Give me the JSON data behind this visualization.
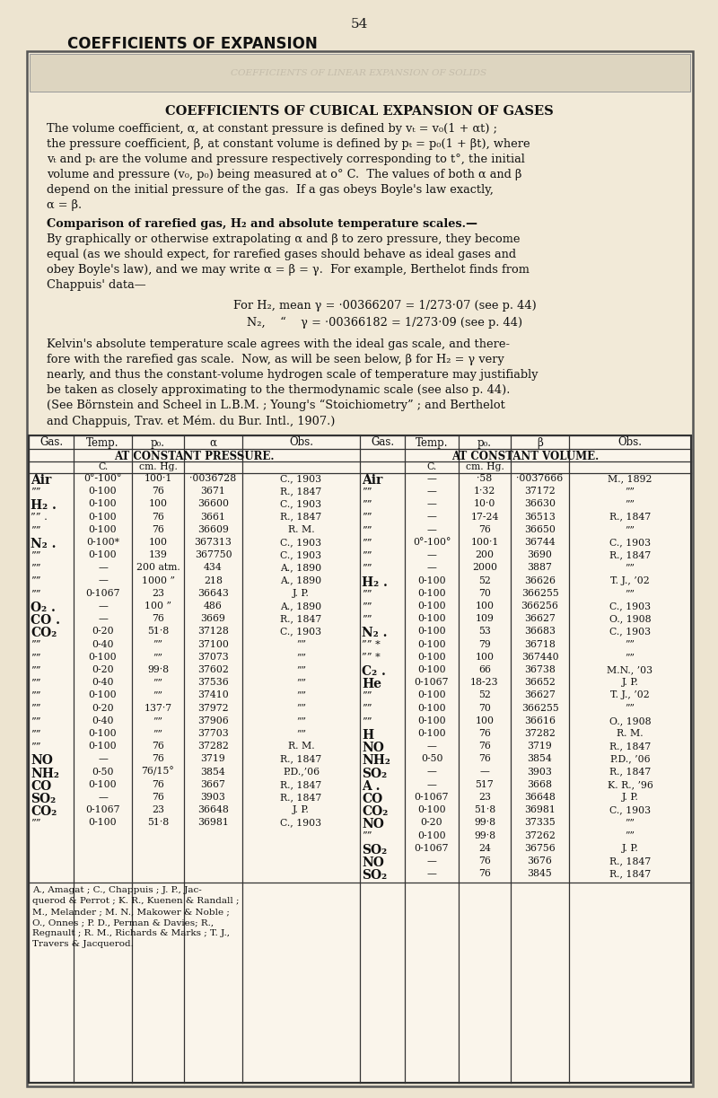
{
  "page_num": "54",
  "page_title": "COEFFICIENTS OF EXPANSION",
  "bg_color": "#ede4d0",
  "box_bg": "#f2ead8",
  "inner_box_bg": "#ddd5c0",
  "title_inner": "COEFFICIENTS OF CUBICAL EXPANSION OF GASES",
  "para1_lines": [
    "The volume coefficient, α, at constant pressure is defined by vₜ = v₀(1 + αt) ;",
    "the pressure coefficient, β, at constant volume is defined by pₜ = p₀(1 + βt), where",
    "vₜ and pₜ are the volume and pressure respectively corresponding to t°, the initial",
    "volume and pressure (v₀, p₀) being measured at o° C.  The values of both α and β",
    "depend on the initial pressure of the gas.  If a gas obeys Boyle's law exactly,",
    "α = β."
  ],
  "bold_heading": "Comparison of rarefied gas, H₂ and absolute temperature scales.—",
  "para2_lines": [
    "By graphically or otherwise extrapolating α and β to zero pressure, they become",
    "equal (as we should expect, for rarefied gases should behave as ideal gases and",
    "obey Boyle's law), and we may write α = β = γ.  For example, Berthelot finds from",
    "Chappuis' data—"
  ],
  "formula1": "For H₂, mean γ = ·00366207 = 1/273·07 (see p. 44)",
  "formula2": "N₂,    “    γ = ·00366182 = 1/273·09 (see p. 44)",
  "para3_lines": [
    "Kelvin's absolute temperature scale agrees with the ideal gas scale, and there-",
    "fore with the rarefied gas scale.  Now, as will be seen below, β for H₂ = γ very",
    "nearly, and thus the constant-volume hydrogen scale of temperature may justifiably",
    "be taken as closely approximating to the thermodynamic scale (see also p. 44).",
    "(See Börnstein and Scheel in L.B.M. ; Young's “Stoichiometry” ; and Berthelot",
    "and Chappuis, Trav. et Mém. du Bur. Intl., 1907.)"
  ],
  "table_header_left": [
    "Gas.",
    "Temp.",
    "p₀.",
    "α",
    "Obs."
  ],
  "table_header_right": [
    "Gas.",
    "Temp.",
    "p₀.",
    "β",
    "Obs."
  ],
  "col_header_left": "AT CONSTANT PRESSURE.",
  "col_header_right": "AT CONSTANT VOLUME.",
  "left_data": [
    [
      "Air",
      "0°-100°",
      "100·1",
      "·0036728",
      "C., 1903"
    ],
    [
      "””",
      "0-100",
      "76",
      "3671",
      "R., 1847"
    ],
    [
      "H₂ .",
      "0-100",
      "100",
      "36600",
      "C., 1903"
    ],
    [
      "”” .",
      "0-100",
      "76",
      "3661",
      "R., 1847"
    ],
    [
      "””",
      "0-100",
      "76",
      "36609",
      "R. M."
    ],
    [
      "N₂ .",
      "0-100*",
      "100",
      "367313",
      "C., 1903"
    ],
    [
      "””",
      "0-100",
      "139",
      "367750",
      "C., 1903"
    ],
    [
      "””",
      "—",
      "200 atm.",
      "434",
      "A., 1890"
    ],
    [
      "””",
      "—",
      "1000 ”",
      "218",
      "A., 1890"
    ],
    [
      "””",
      "0-1067",
      "23",
      "36643",
      "J. P."
    ],
    [
      "O₂ .",
      "—",
      "100 ”",
      "486",
      "A., 1890"
    ],
    [
      "CO .",
      "—",
      "76",
      "3669",
      "R., 1847"
    ],
    [
      "CO₂",
      "0-20",
      "51·8",
      "37128",
      "C., 1903"
    ],
    [
      "””",
      "0-40",
      "””",
      "37100",
      "””"
    ],
    [
      "””",
      "0-100",
      "””",
      "37073",
      "””"
    ],
    [
      "””",
      "0-20",
      "99·8",
      "37602",
      "””"
    ],
    [
      "””",
      "0-40",
      "””",
      "37536",
      "””"
    ],
    [
      "””",
      "0-100",
      "””",
      "37410",
      "””"
    ],
    [
      "””",
      "0-20",
      "137·7",
      "37972",
      "””"
    ],
    [
      "””",
      "0-40",
      "””",
      "37906",
      "””"
    ],
    [
      "””",
      "0-100",
      "””",
      "37703",
      "””"
    ],
    [
      "””",
      "0-100",
      "76",
      "37282",
      "R. M."
    ],
    [
      "NO",
      "—",
      "76",
      "3719",
      "R., 1847"
    ],
    [
      "NH₂",
      "0-50",
      "76/15°",
      "3854",
      "P.D.,’06"
    ],
    [
      "CO",
      "0-100",
      "76",
      "3667",
      "R., 1847"
    ],
    [
      "SO₂",
      "—",
      "76",
      "3903",
      "R., 1847"
    ],
    [
      "CO₂",
      "0-1067",
      "23",
      "36648",
      "J. P."
    ],
    [
      "””",
      "0-100",
      "51·8",
      "36981",
      "C., 1903"
    ]
  ],
  "right_data": [
    [
      "Air",
      "—",
      "·58",
      "·0037666",
      "M., 1892"
    ],
    [
      "””",
      "—",
      "1·32",
      "37172",
      "””"
    ],
    [
      "””",
      "—",
      "10·0",
      "36630",
      "””"
    ],
    [
      "””",
      "—",
      "17-24",
      "36513",
      "R., 1847"
    ],
    [
      "””",
      "—",
      "76",
      "36650",
      "””"
    ],
    [
      "””",
      "0°-100°",
      "100·1",
      "36744",
      "C., 1903"
    ],
    [
      "””",
      "—",
      "200",
      "3690",
      "R., 1847"
    ],
    [
      "””",
      "—",
      "2000",
      "3887",
      "””"
    ],
    [
      "H₂ .",
      "0-100",
      "52",
      "36626",
      "T. J., ’02"
    ],
    [
      "””",
      "0-100",
      "70",
      "366255",
      "””"
    ],
    [
      "””",
      "0-100",
      "100",
      "366256",
      "C., 1903"
    ],
    [
      "””",
      "0-100",
      "109",
      "36627",
      "O., 1908"
    ],
    [
      "N₂ .",
      "0-100",
      "53",
      "36683",
      "C., 1903"
    ],
    [
      "”” *",
      "0-100",
      "79",
      "36718",
      "””"
    ],
    [
      "”” *",
      "0-100",
      "100",
      "367440",
      "””"
    ],
    [
      "C₂ .",
      "0-100",
      "66",
      "36738",
      "M.N., ’03"
    ],
    [
      "He",
      "0-1067",
      "18-23",
      "36652",
      "J. P."
    ],
    [
      "””",
      "0-100",
      "52",
      "36627",
      "T. J., ’02"
    ],
    [
      "””",
      "0-100",
      "70",
      "366255",
      "””"
    ],
    [
      "””",
      "0-100",
      "100",
      "36616",
      "O., 1908"
    ],
    [
      "H",
      "0-100",
      "76",
      "37282",
      "R. M."
    ],
    [
      "NO",
      "—",
      "76",
      "3719",
      "R., 1847"
    ],
    [
      "NH₂",
      "0-50",
      "76",
      "3854",
      "P.D., ’06"
    ],
    [
      "SO₂",
      "—",
      "—",
      "3903",
      "R., 1847"
    ],
    [
      "A .",
      "—",
      "517",
      "3668",
      "K. R., ’96"
    ],
    [
      "CO",
      "0-1067",
      "23",
      "36648",
      "J. P."
    ],
    [
      "CO₂",
      "0-100",
      "51·8",
      "36981",
      "C., 1903"
    ],
    [
      "NO",
      "0-20",
      "99·8",
      "37335",
      "””"
    ],
    [
      "””",
      "0-100",
      "99·8",
      "37262",
      "””"
    ],
    [
      "SO₂",
      "0-1067",
      "24",
      "36756",
      "J. P."
    ],
    [
      "NO",
      "—",
      "76",
      "3676",
      "R., 1847"
    ],
    [
      "SO₂",
      "—",
      "76",
      "3845",
      "R., 1847"
    ]
  ],
  "footnote_lines": [
    "A., Amagat ; C., Chappuis ; J. P., Jac-    querod & Perrot ; K. R., Kuenen & Randall ;",
    "M., Melander ; M. N., Makower & Noble ;  O., Onnes ; P. D., Perman & Davies; R.,",
    "Regnault ; R. M., Richards & Marks ; T. J.,  Travers & Jacquerod."
  ],
  "footnote_col1": [
    "A., Amagat ; C., Chappuis ; J. P., Jac-",
    "querod & Perrot ; K. R., Kuenen & Randall ;",
    "M., Melander ; M. N., Makower & Noble ;",
    "O., Onnes ; P. D., Perman & Davies; R.,",
    "Regnault ; R. M., Richards & Marks ; T. J.,",
    "Travers & Jacquerod."
  ]
}
